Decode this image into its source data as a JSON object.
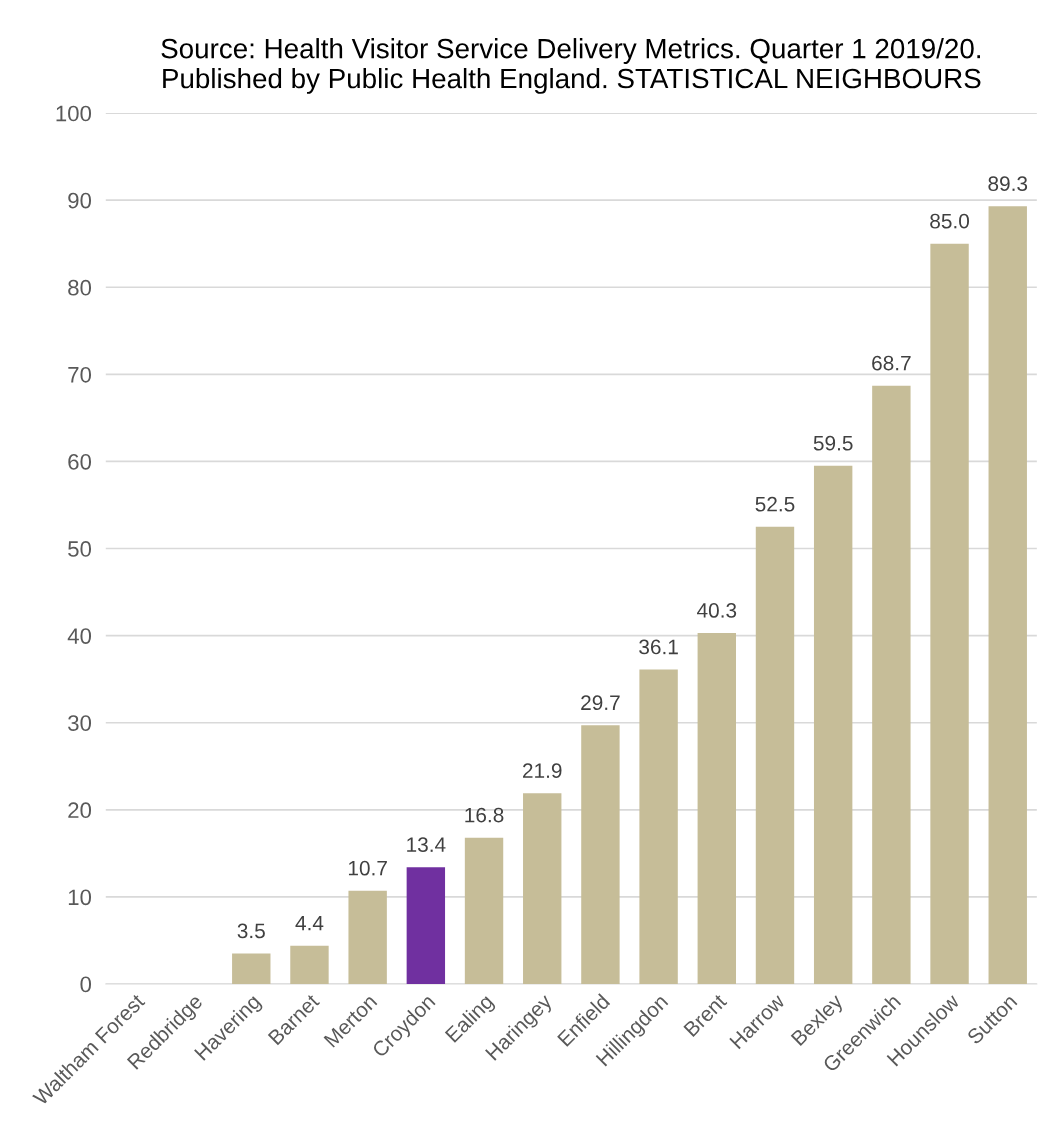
{
  "chart_data": {
    "type": "bar",
    "title": "Source: Health Visitor Service Delivery Metrics. Quarter 1 2019/20.\nPublished by Public Health England. STATISTICAL NEIGHBOURS",
    "categories": [
      "Waltham Forest",
      "Redbridge",
      "Havering",
      "Barnet",
      "Merton",
      "Croydon",
      "Ealing",
      "Haringey",
      "Enfield",
      "Hillingdon",
      "Brent",
      "Harrow",
      "Bexley",
      "Greenwich",
      "Hounslow",
      "Sutton"
    ],
    "values": [
      null,
      null,
      3.5,
      4.4,
      10.7,
      13.4,
      16.8,
      21.9,
      29.7,
      36.1,
      40.3,
      52.5,
      59.5,
      68.7,
      85.0,
      89.3
    ],
    "value_labels": [
      null,
      null,
      "3.5",
      "4.4",
      "10.7",
      "13.4",
      "16.8",
      "21.9",
      "29.7",
      "36.1",
      "40.3",
      "52.5",
      "59.5",
      "68.7",
      "85.0",
      "89.3"
    ],
    "colors": [
      "#c6bd98",
      "#c6bd98",
      "#c6bd98",
      "#c6bd98",
      "#c6bd98",
      "#7030a0",
      "#c6bd98",
      "#c6bd98",
      "#c6bd98",
      "#c6bd98",
      "#c6bd98",
      "#c6bd98",
      "#c6bd98",
      "#c6bd98",
      "#c6bd98",
      "#c6bd98"
    ],
    "ylim": [
      0,
      100
    ],
    "yticks": [
      0,
      10,
      20,
      30,
      40,
      50,
      60,
      70,
      80,
      90,
      100
    ],
    "grid": "y"
  }
}
